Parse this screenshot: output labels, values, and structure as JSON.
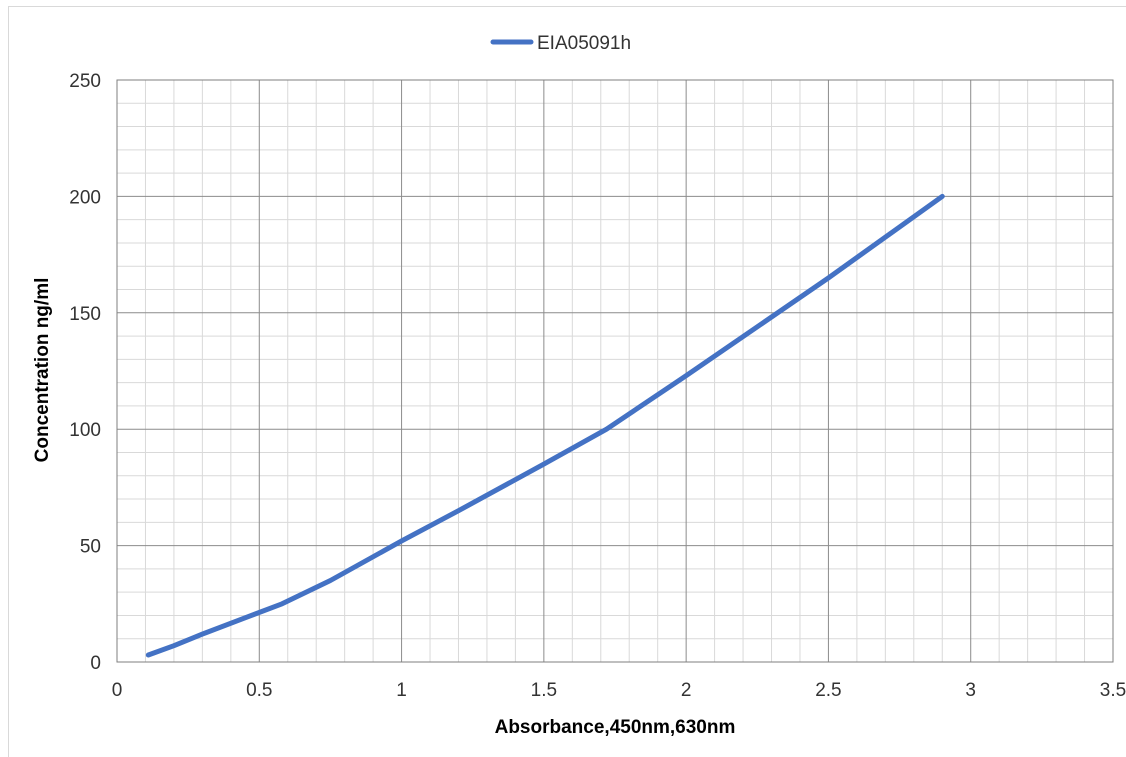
{
  "chart_data": {
    "type": "line",
    "title": "",
    "xlabel": "Absorbance,450nm,630nm",
    "ylabel": "Concentration ng/ml",
    "xlim": [
      0,
      3.5
    ],
    "ylim": [
      0,
      250
    ],
    "x_ticks": [
      "0",
      "0.5",
      "1",
      "1.5",
      "2",
      "2.5",
      "3",
      "3.5"
    ],
    "y_ticks": [
      "0",
      "50",
      "100",
      "150",
      "200",
      "250"
    ],
    "grid": true,
    "legend_position": "top-center",
    "series": [
      {
        "name": "EIA05091h",
        "color": "#4472C4",
        "x": [
          0.11,
          0.2,
          0.3,
          0.45,
          0.58,
          0.75,
          1.0,
          1.2,
          1.5,
          1.72,
          2.0,
          2.5,
          2.9
        ],
        "y": [
          3,
          7,
          12,
          19,
          25,
          35,
          52,
          65,
          85,
          100,
          123,
          165,
          200
        ]
      }
    ]
  }
}
